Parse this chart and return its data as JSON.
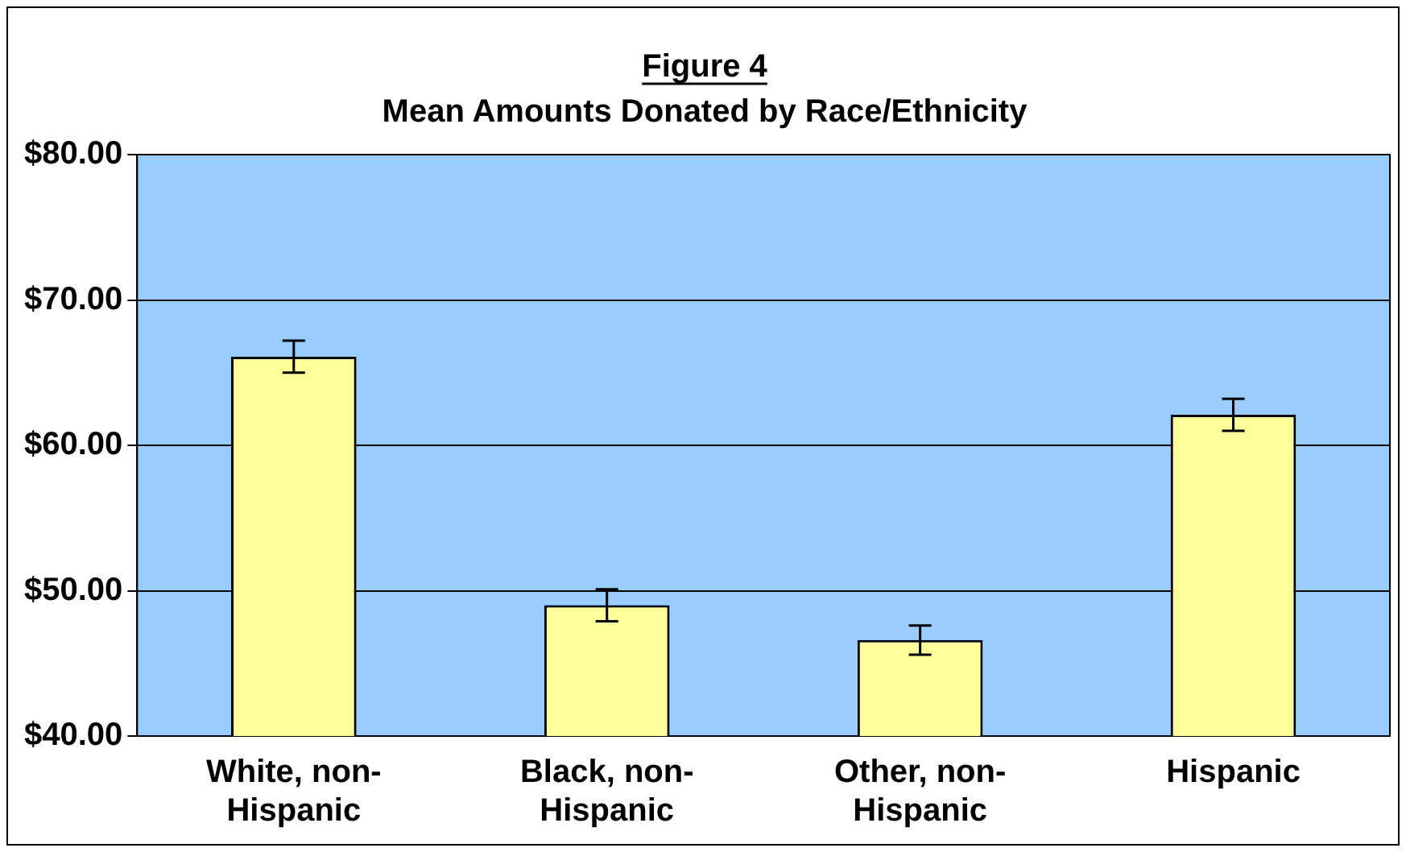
{
  "chart_data": {
    "type": "bar",
    "title": "Figure 4",
    "subtitle": "Mean Amounts Donated by Race/Ethnicity",
    "categories": [
      "White, non-Hispanic",
      "Black, non-Hispanic",
      "Other, non-Hispanic",
      "Hispanic"
    ],
    "values": [
      66.1,
      49.0,
      46.6,
      62.1
    ],
    "errors": [
      1.1,
      1.1,
      1.0,
      1.1
    ],
    "color": "#ffff99",
    "ylim": [
      40,
      80
    ],
    "yticks": [
      {
        "value": 40,
        "label": "$40.00"
      },
      {
        "value": 50,
        "label": "$50.00"
      },
      {
        "value": 60,
        "label": "$60.00"
      },
      {
        "value": 70,
        "label": "$70.00"
      },
      {
        "value": 80,
        "label": "$80.00"
      }
    ],
    "grid": "y",
    "legend": false
  }
}
